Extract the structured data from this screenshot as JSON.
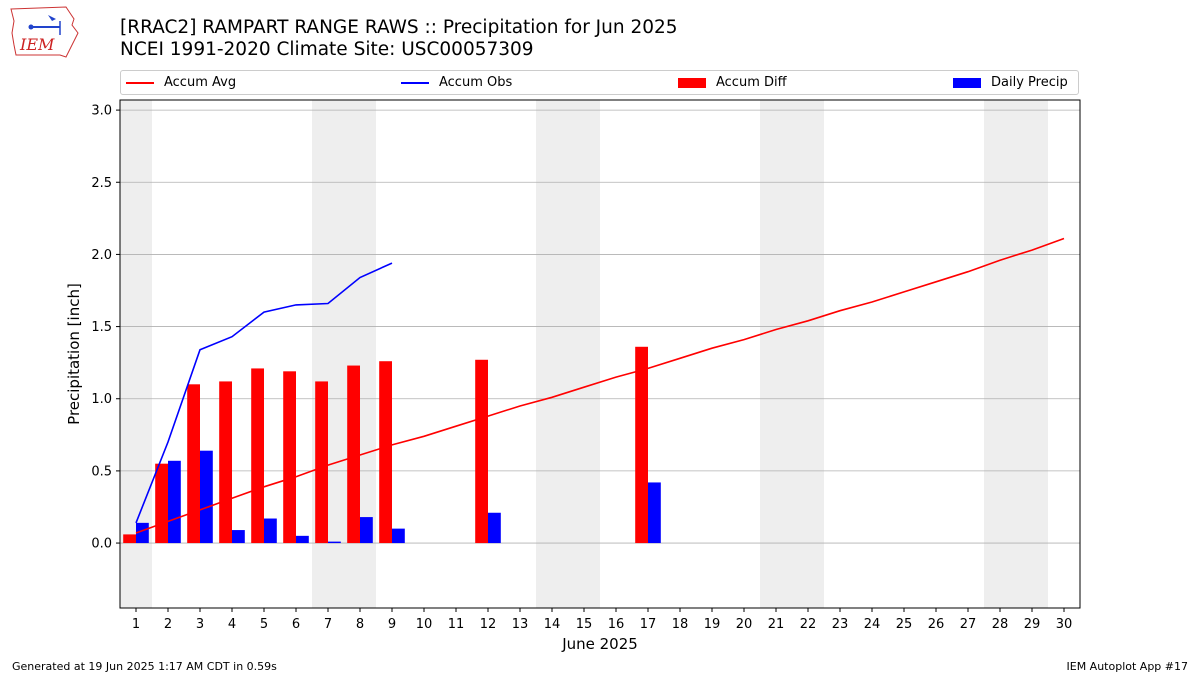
{
  "header": {
    "title_line1": "[RRAC2] RAMPART RANGE RAWS :: Precipitation for Jun 2025",
    "title_line2": "NCEI 1991-2020 Climate Site: USC00057309",
    "logo_text": "IEM"
  },
  "footer": {
    "left": "Generated at 19 Jun 2025 1:17 AM CDT in 0.59s",
    "right": "IEM Autoplot App #17"
  },
  "colors": {
    "avg": "#ff0000",
    "obs": "#0000ff",
    "diff": "#ff0000",
    "daily": "#0000ff",
    "weekend_shade": "#eeeeee",
    "grid": "#b0b0b0"
  },
  "chart_data": {
    "type": "bar",
    "title": "[RRAC2] RAMPART RANGE RAWS :: Precipitation for Jun 2025",
    "subtitle": "NCEI 1991-2020 Climate Site: USC00057309",
    "xlabel": "June 2025",
    "ylabel": "Precipitation [inch]",
    "xlim": [
      0.5,
      30.5
    ],
    "ylim": [
      -0.45,
      3.07
    ],
    "x_ticks": [
      1,
      2,
      3,
      4,
      5,
      6,
      7,
      8,
      9,
      10,
      11,
      12,
      13,
      14,
      15,
      16,
      17,
      18,
      19,
      20,
      21,
      22,
      23,
      24,
      25,
      26,
      27,
      28,
      29,
      30
    ],
    "y_ticks": [
      0.0,
      0.5,
      1.0,
      1.5,
      2.0,
      2.5,
      3.0
    ],
    "y_tick_labels": [
      "0.0",
      "0.5",
      "1.0",
      "1.5",
      "2.0",
      "2.5",
      "3.0"
    ],
    "grid": "horizontal",
    "legend_location": "top, above plot",
    "shaded_day_ranges": [
      [
        0.5,
        1.5
      ],
      [
        6.5,
        8.5
      ],
      [
        13.5,
        15.5
      ],
      [
        20.5,
        22.5
      ],
      [
        27.5,
        29.5
      ]
    ],
    "series": [
      {
        "name": "Accum Avg",
        "kind": "line",
        "x": [
          1,
          2,
          3,
          4,
          5,
          6,
          7,
          8,
          9,
          10,
          11,
          12,
          13,
          14,
          15,
          16,
          17,
          18,
          19,
          20,
          21,
          22,
          23,
          24,
          25,
          26,
          27,
          28,
          29,
          30
        ],
        "values": [
          0.07,
          0.15,
          0.23,
          0.31,
          0.39,
          0.46,
          0.54,
          0.61,
          0.68,
          0.74,
          0.81,
          0.88,
          0.95,
          1.01,
          1.08,
          1.15,
          1.21,
          1.28,
          1.35,
          1.41,
          1.48,
          1.54,
          1.61,
          1.67,
          1.74,
          1.81,
          1.88,
          1.96,
          2.03,
          2.11
        ]
      },
      {
        "name": "Accum Obs",
        "kind": "line",
        "x": [
          1,
          2,
          3,
          4,
          5,
          6,
          7,
          8,
          9
        ],
        "values": [
          0.14,
          0.7,
          1.34,
          1.43,
          1.6,
          1.65,
          1.66,
          1.84,
          1.94
        ]
      },
      {
        "name": "Accum Diff",
        "kind": "bar",
        "x": [
          1,
          2,
          3,
          4,
          5,
          6,
          7,
          8,
          9,
          12,
          17
        ],
        "values": [
          0.06,
          0.55,
          1.1,
          1.12,
          1.21,
          1.19,
          1.12,
          1.23,
          1.26,
          1.27,
          1.36
        ]
      },
      {
        "name": "Daily Precip",
        "kind": "bar",
        "x": [
          1,
          2,
          3,
          4,
          5,
          6,
          7,
          8,
          9,
          12,
          17
        ],
        "values": [
          0.14,
          0.57,
          0.64,
          0.09,
          0.17,
          0.05,
          0.01,
          0.18,
          0.1,
          0.21,
          0.42
        ]
      }
    ]
  }
}
